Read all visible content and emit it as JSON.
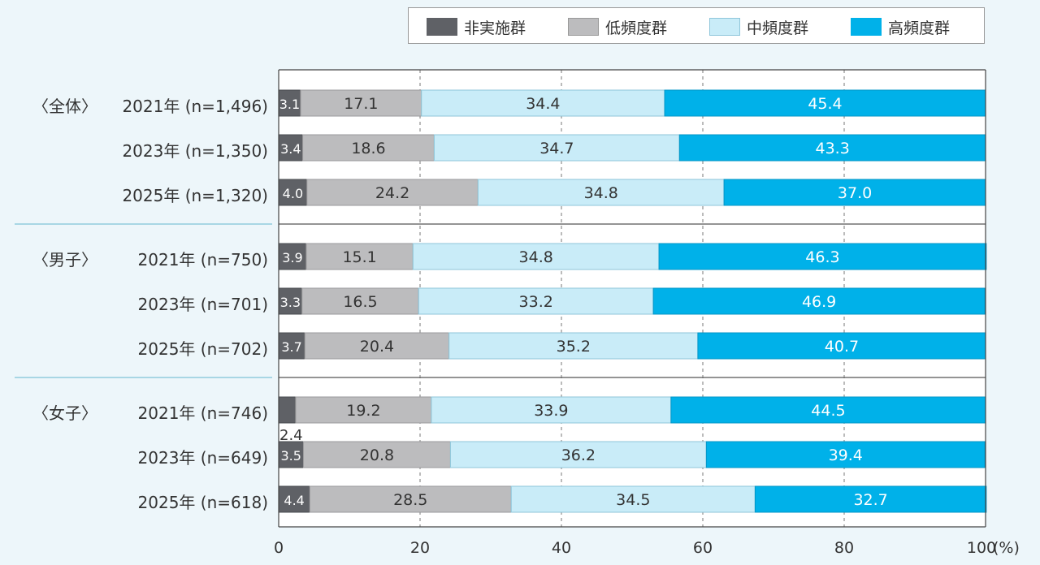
{
  "colors": {
    "non_participant": "#5f6166",
    "low_frequency": "#bcbcbe",
    "mid_frequency": "#c9ecf8",
    "high_frequency": "#00b1e9",
    "background": "#edf6fa"
  },
  "legend": [
    {
      "label": "非実施群",
      "color": "#5f6166"
    },
    {
      "label": "低頻度群",
      "color": "#bcbcbe"
    },
    {
      "label": "中頻度群",
      "color": "#c9ecf8"
    },
    {
      "label": "高頻度群",
      "color": "#00b1e9"
    }
  ],
  "chart_data": {
    "type": "bar",
    "orientation": "horizontal",
    "stacked": true,
    "xlim": [
      0,
      100
    ],
    "x_ticks": [
      "0",
      "20",
      "40",
      "60",
      "80",
      "100"
    ],
    "x_unit": "(%)",
    "grid": "vertical dashed",
    "legend_position": "top-right",
    "groups": [
      {
        "label": "〈全体〉",
        "rows": [
          {
            "label": "2021年 (n=1,496)",
            "values": [
              3.1,
              17.1,
              34.4,
              45.4
            ]
          },
          {
            "label": "2023年 (n=1,350)",
            "values": [
              3.4,
              18.6,
              34.7,
              43.3
            ]
          },
          {
            "label": "2025年 (n=1,320)",
            "values": [
              4.0,
              24.2,
              34.8,
              37.0
            ]
          }
        ]
      },
      {
        "label": "〈男子〉",
        "rows": [
          {
            "label": "2021年 (n=750)",
            "values": [
              3.9,
              15.1,
              34.8,
              46.3
            ]
          },
          {
            "label": "2023年 (n=701)",
            "values": [
              3.3,
              16.5,
              33.2,
              46.9
            ]
          },
          {
            "label": "2025年 (n=702)",
            "values": [
              3.7,
              20.4,
              35.2,
              40.7
            ]
          }
        ]
      },
      {
        "label": "〈女子〉",
        "rows": [
          {
            "label": "2021年 (n=746)",
            "values": [
              2.4,
              19.2,
              33.9,
              44.5
            ]
          },
          {
            "label": "2023年 (n=649)",
            "values": [
              3.5,
              20.8,
              36.2,
              39.4
            ]
          },
          {
            "label": "2025年 (n=618)",
            "values": [
              4.4,
              28.5,
              34.5,
              32.7
            ]
          }
        ]
      }
    ],
    "series": [
      {
        "name": "非実施群"
      },
      {
        "name": "低頻度群"
      },
      {
        "name": "中頻度群"
      },
      {
        "name": "高頻度群"
      }
    ]
  }
}
